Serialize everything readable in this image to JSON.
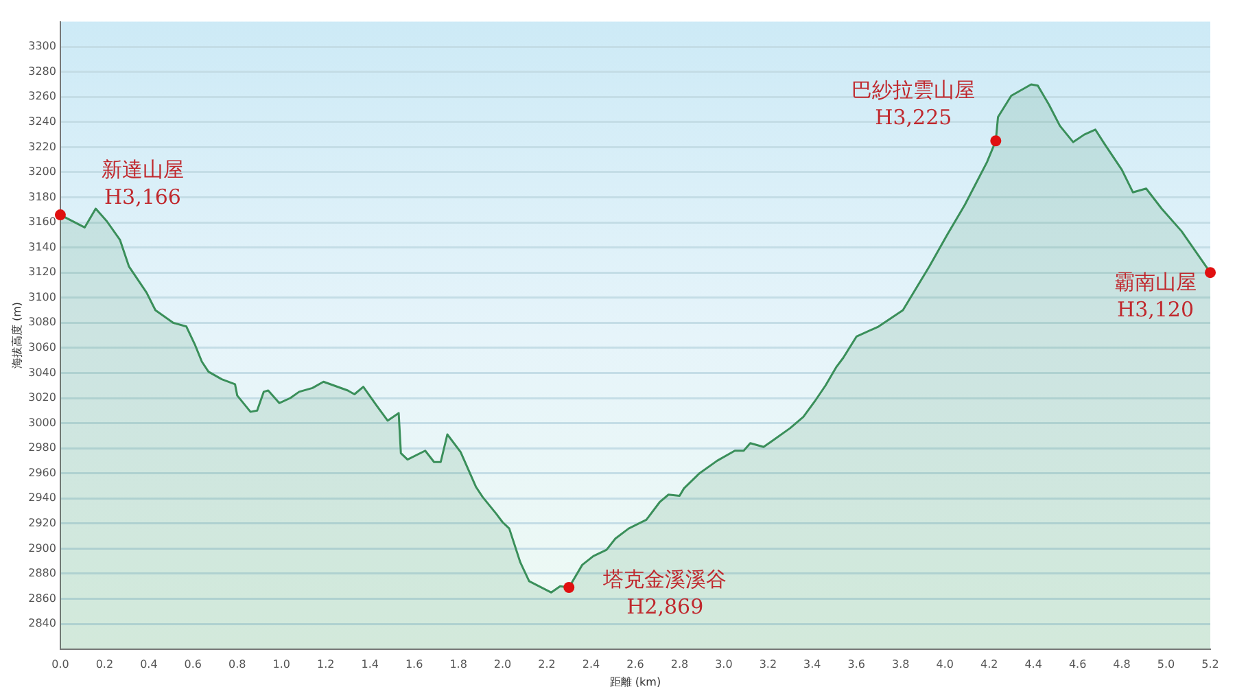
{
  "chart_data": {
    "type": "area",
    "xlabel": "距離 (km)",
    "ylabel": "海拔高度 (m)",
    "xlim": [
      0,
      5.2
    ],
    "ylim": [
      2820,
      3320
    ],
    "xticks": [
      {
        "value": 0,
        "label": "0.0"
      },
      {
        "value": 0.2,
        "label": "0.2"
      },
      {
        "value": 0.4,
        "label": "0.4"
      },
      {
        "value": 0.6,
        "label": "0.6"
      },
      {
        "value": 0.8,
        "label": "0.8"
      },
      {
        "value": 1,
        "label": "1.0"
      },
      {
        "value": 1.2,
        "label": "1.2"
      },
      {
        "value": 1.4,
        "label": "1.4"
      },
      {
        "value": 1.6,
        "label": "1.6"
      },
      {
        "value": 1.8,
        "label": "1.8"
      },
      {
        "value": 2,
        "label": "2.0"
      },
      {
        "value": 2.2,
        "label": "2.2"
      },
      {
        "value": 2.4,
        "label": "2.4"
      },
      {
        "value": 2.6,
        "label": "2.6"
      },
      {
        "value": 2.8,
        "label": "2.8"
      },
      {
        "value": 3,
        "label": "3.0"
      },
      {
        "value": 3.2,
        "label": "3.2"
      },
      {
        "value": 3.4,
        "label": "3.4"
      },
      {
        "value": 3.6,
        "label": "3.6"
      },
      {
        "value": 3.8,
        "label": "3.8"
      },
      {
        "value": 4,
        "label": "4.0"
      },
      {
        "value": 4.2,
        "label": "4.2"
      },
      {
        "value": 4.4,
        "label": "4.4"
      },
      {
        "value": 4.6,
        "label": "4.6"
      },
      {
        "value": 4.8,
        "label": "4.8"
      },
      {
        "value": 5,
        "label": "5.0"
      },
      {
        "value": 5.2,
        "label": "5.2"
      }
    ],
    "yticks": [
      2840,
      2860,
      2880,
      2900,
      2920,
      2940,
      2960,
      2980,
      3000,
      3020,
      3040,
      3060,
      3080,
      3100,
      3120,
      3140,
      3160,
      3180,
      3200,
      3220,
      3240,
      3260,
      3280,
      3300
    ],
    "grid": "y",
    "legend": false,
    "marker": "none",
    "line_style": "solid",
    "series": [
      {
        "color": "#3a8f5a",
        "x": [
          0,
          0.11,
          0.16,
          0.21,
          0.27,
          0.31,
          0.39,
          0.43,
          0.51,
          0.57,
          0.61,
          0.64,
          0.67,
          0.73,
          0.79,
          0.8,
          0.86,
          0.89,
          0.92,
          0.94,
          0.99,
          1.04,
          1.08,
          1.14,
          1.19,
          1.3,
          1.33,
          1.37,
          1.43,
          1.48,
          1.53,
          1.54,
          1.57,
          1.65,
          1.69,
          1.72,
          1.75,
          1.81,
          1.88,
          1.91,
          1.97,
          2.0,
          2.03,
          2.08,
          2.12,
          2.22,
          2.26,
          2.3,
          2.36,
          2.41,
          2.47,
          2.51,
          2.57,
          2.65,
          2.71,
          2.75,
          2.8,
          2.82,
          2.89,
          2.97,
          3.05,
          3.09,
          3.12,
          3.18,
          3.22,
          3.3,
          3.36,
          3.41,
          3.46,
          3.51,
          3.54,
          3.6,
          3.7,
          3.81,
          3.93,
          4.01,
          4.09,
          4.19,
          4.23,
          4.24,
          4.3,
          4.39,
          4.42,
          4.47,
          4.52,
          4.58,
          4.63,
          4.68,
          4.72,
          4.8,
          4.85,
          4.91,
          4.98,
          5.07,
          5.2
        ],
        "values": [
          3166,
          3156,
          3171,
          3161,
          3146,
          3125,
          3104,
          3090,
          3080,
          3077,
          3062,
          3049,
          3041,
          3035,
          3031,
          3022,
          3009,
          3010,
          3025,
          3026,
          3016,
          3020,
          3025,
          3028,
          3033,
          3026,
          3023,
          3029,
          3014,
          3002,
          3008,
          2976,
          2971,
          2978,
          2969,
          2969,
          2991,
          2977,
          2949,
          2941,
          2928,
          2921,
          2916,
          2889,
          2874,
          2865,
          2870,
          2869,
          2887,
          2894,
          2899,
          2908,
          2916,
          2923,
          2937,
          2943,
          2942,
          2948,
          2960,
          2970,
          2978,
          2978,
          2984,
          2981,
          2986,
          2996,
          3005,
          3017,
          3030,
          3045,
          3052,
          3069,
          3077,
          3090,
          3125,
          3150,
          3174,
          3208,
          3225,
          3244,
          3261,
          3270,
          3269,
          3254,
          3237,
          3224,
          3230,
          3234,
          3223,
          3202,
          3184,
          3187,
          3171,
          3153,
          3120
        ]
      }
    ],
    "annotations": [
      {
        "text": "新達山屋\nH3,166",
        "x": 0,
        "y": 3166
      },
      {
        "text": "塔克金溪溪谷\nH2,869",
        "x": 2.3,
        "y": 2869
      },
      {
        "text": "巴紗拉雲山屋\nH3,225",
        "x": 4.23,
        "y": 3225
      },
      {
        "text": "霸南山屋\nH3,120",
        "x": 5.2,
        "y": 3120
      }
    ]
  }
}
